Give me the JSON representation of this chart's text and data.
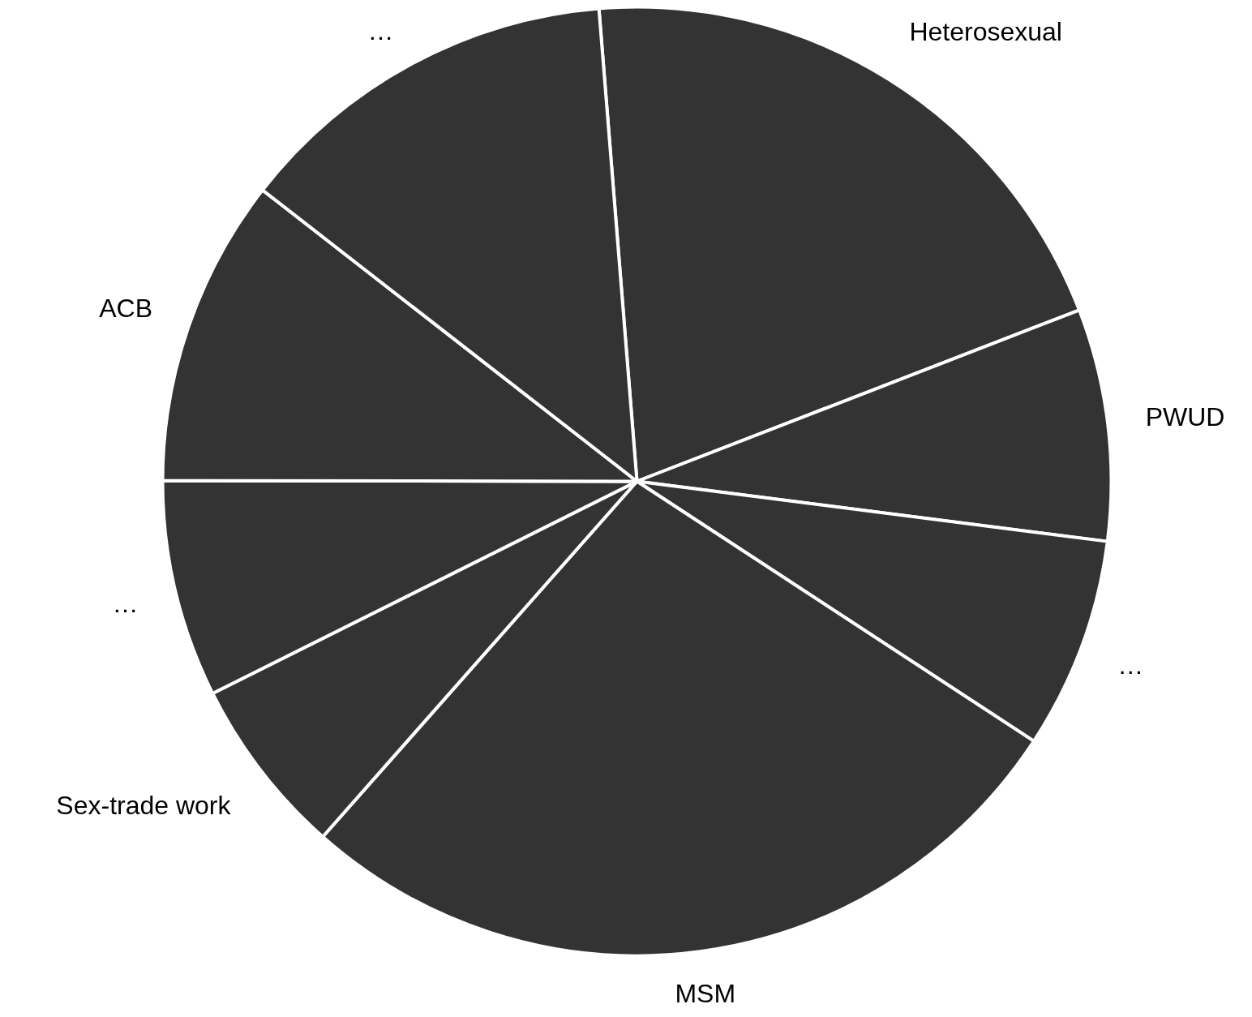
{
  "chart_data": {
    "type": "pie",
    "categories": [
      "Heterosexual",
      "PWUD",
      "…",
      "MSM",
      "Sex-trade work",
      "…",
      "ACB",
      "…"
    ],
    "values": [
      20.4,
      7.9,
      7.2,
      27.3,
      6.1,
      7.4,
      10.5,
      13.2
    ],
    "colors": [
      "#333333",
      "#333333",
      "#333333",
      "#333333",
      "#333333",
      "#333333",
      "#333333",
      "#333333"
    ]
  }
}
